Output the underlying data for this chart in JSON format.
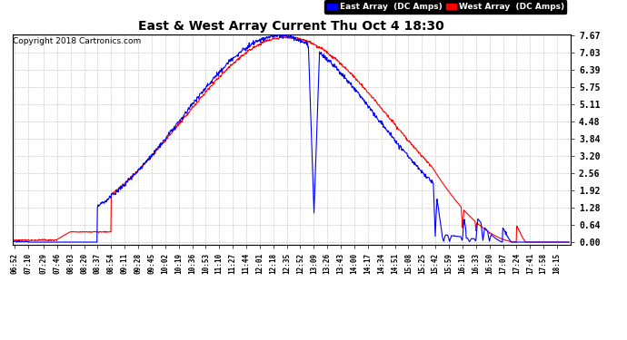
{
  "title": "East & West Array Current Thu Oct 4 18:30",
  "copyright": "Copyright 2018 Cartronics.com",
  "east_label": "East Array  (DC Amps)",
  "west_label": "West Array  (DC Amps)",
  "east_color": "#0000ff",
  "west_color": "#ff0000",
  "yticks": [
    0.0,
    0.64,
    1.28,
    1.92,
    2.56,
    3.2,
    3.84,
    4.48,
    5.11,
    5.75,
    6.39,
    7.03,
    7.67
  ],
  "ymax": 7.67,
  "ymin": -0.1,
  "background_color": "#ffffff",
  "grid_color": "#bbbbbb",
  "xtick_labels": [
    "06:52",
    "07:10",
    "07:29",
    "07:46",
    "08:03",
    "08:20",
    "08:37",
    "08:54",
    "09:11",
    "09:28",
    "09:45",
    "10:02",
    "10:19",
    "10:36",
    "10:53",
    "11:10",
    "11:27",
    "11:44",
    "12:01",
    "12:18",
    "12:35",
    "12:52",
    "13:09",
    "13:26",
    "13:43",
    "14:00",
    "14:17",
    "14:34",
    "14:51",
    "15:08",
    "15:25",
    "15:42",
    "15:59",
    "16:16",
    "16:33",
    "16:50",
    "17:07",
    "17:24",
    "17:41",
    "17:58",
    "18:15"
  ]
}
